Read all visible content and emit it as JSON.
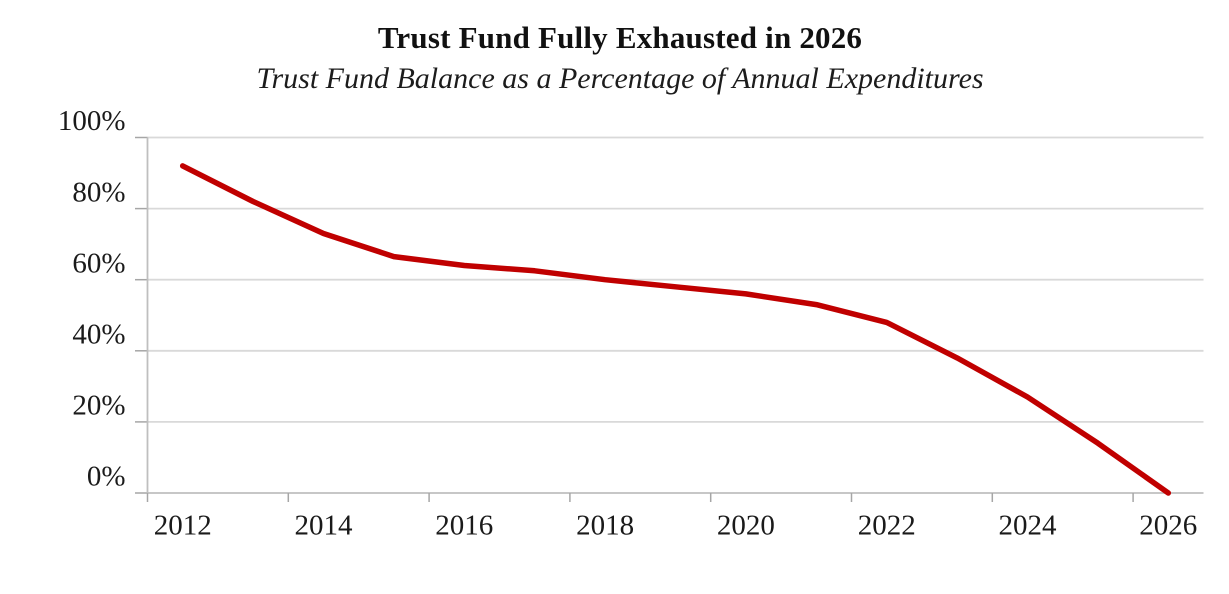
{
  "chart_data": {
    "type": "line",
    "title": "Trust Fund Fully Exhausted in 2026",
    "subtitle": "Trust Fund Balance as a Percentage of Annual Expenditures",
    "xlabel": "",
    "ylabel": "",
    "x": [
      2012,
      2013,
      2014,
      2015,
      2016,
      2017,
      2018,
      2019,
      2020,
      2021,
      2022,
      2023,
      2024,
      2025,
      2026
    ],
    "series": [
      {
        "name": "Trust Fund Balance as a Percentage of Annual Expenditures",
        "values": [
          92,
          82,
          73,
          66.5,
          64,
          62.5,
          60,
          58,
          56,
          53,
          48,
          38,
          27,
          14,
          0
        ]
      }
    ],
    "ylim": [
      0,
      100
    ],
    "y_ticks": [
      0,
      20,
      40,
      60,
      80,
      100
    ],
    "y_tick_labels": [
      "0%",
      "20%",
      "40%",
      "60%",
      "80%",
      "100%"
    ],
    "x_tick_years": [
      2012,
      2014,
      2016,
      2018,
      2020,
      2022,
      2024,
      2026
    ],
    "x_tick_labels": [
      "2012",
      "2014",
      "2016",
      "2018",
      "2020",
      "2022",
      "2024",
      "2026"
    ],
    "grid": "horizontal",
    "legend": "none",
    "line_color": "#C00000",
    "gridline_color": "#D9D9D9",
    "axis_color": "#BFBFBF",
    "tick_color": "#A6A6A6",
    "text_color": "#1A1A1A"
  }
}
